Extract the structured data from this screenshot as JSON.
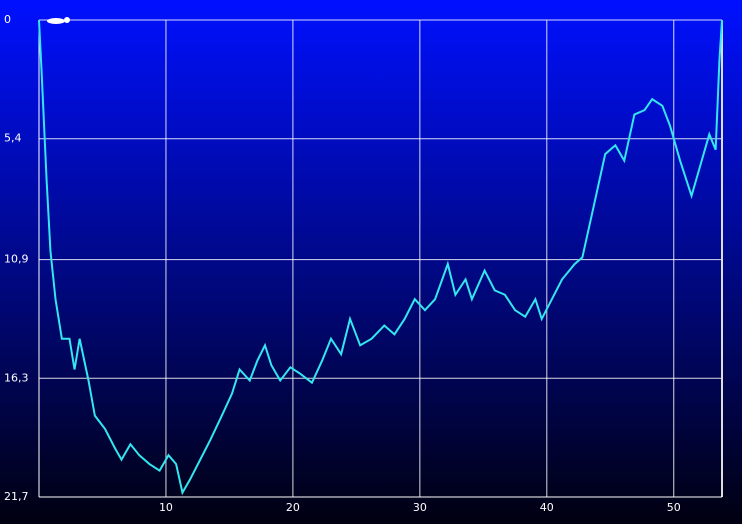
{
  "chart_data": {
    "type": "line",
    "x": [
      0,
      0.2,
      0.6,
      0.9,
      1.3,
      1.8,
      2.4,
      2.8,
      3.2,
      3.9,
      4.4,
      5.2,
      6.0,
      6.5,
      7.2,
      7.9,
      8.7,
      9.5,
      10.2,
      10.8,
      11.3,
      11.9,
      12.7,
      13.5,
      14.4,
      15.2,
      15.8,
      16.6,
      17.2,
      17.8,
      18.3,
      19.0,
      19.8,
      20.6,
      21.5,
      22.3,
      23.0,
      23.8,
      24.5,
      25.3,
      26.2,
      27.2,
      28.0,
      28.8,
      29.6,
      30.4,
      31.2,
      32.2,
      32.8,
      33.6,
      34.1,
      35.1,
      35.9,
      36.7,
      37.5,
      38.3,
      39.1,
      39.6,
      40.4,
      41.2,
      42.2,
      42.8,
      43.8,
      44.6,
      45.4,
      46.1,
      46.9,
      47.7,
      48.3,
      49.1,
      49.7,
      50.5,
      51.4,
      52.0,
      52.8,
      53.3,
      53.6,
      53.8
    ],
    "series": [
      {
        "color": "#33e6f0",
        "values": [
          0,
          2.3,
          7.3,
          10.5,
          12.7,
          14.5,
          14.5,
          15.9,
          14.5,
          16.4,
          18.0,
          18.6,
          19.5,
          20.0,
          19.3,
          19.8,
          20.2,
          20.5,
          19.8,
          20.2,
          21.5,
          20.9,
          20.0,
          19.1,
          18.0,
          17.0,
          15.9,
          16.4,
          15.5,
          14.8,
          15.7,
          16.4,
          15.8,
          16.1,
          16.5,
          15.5,
          14.5,
          15.2,
          13.6,
          14.8,
          14.5,
          13.9,
          14.3,
          13.6,
          12.7,
          13.2,
          12.7,
          11.1,
          12.5,
          11.8,
          12.7,
          11.4,
          12.3,
          12.5,
          13.2,
          13.5,
          12.7,
          13.6,
          12.7,
          11.8,
          11.1,
          10.8,
          8.2,
          6.1,
          5.7,
          6.4,
          4.3,
          4.1,
          3.6,
          3.9,
          4.8,
          6.4,
          8.0,
          6.8,
          5.2,
          5.9,
          1.8,
          0
        ]
      }
    ],
    "xlim": [
      0,
      53.8
    ],
    "xticks": [
      10,
      20,
      30,
      40,
      50
    ],
    "ylim": [
      21.7,
      0
    ],
    "yticks": [
      0,
      {
        "value": 5.4,
        "label": "5,4"
      },
      {
        "value": 10.9,
        "label": "10,9"
      },
      {
        "value": 16.3,
        "label": "16,3"
      },
      {
        "value": 21.7,
        "label": "21,7"
      }
    ],
    "grid": true
  }
}
